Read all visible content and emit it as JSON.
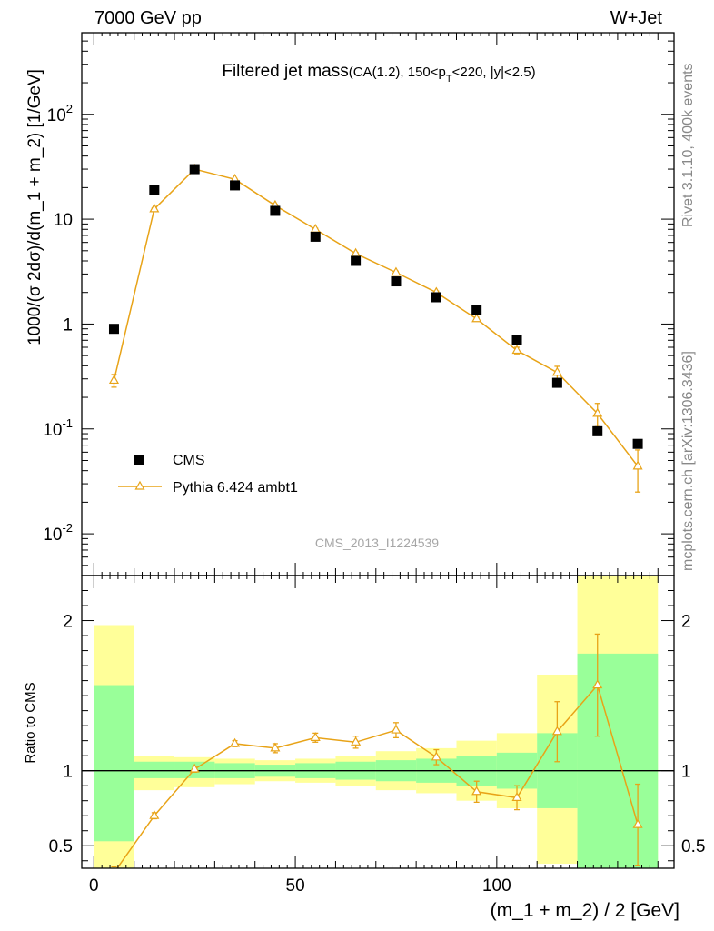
{
  "header": {
    "left": "7000 GeV pp",
    "right": "W+Jet"
  },
  "title": {
    "main": "Filtered jet mass",
    "sub_prefix": "(CA(1.2), 150<p",
    "sub_index": "T",
    "sub_suffix": "<220, |y|<2.5)"
  },
  "side_labels": {
    "rivet": "Rivet 3.1.10,  400k events",
    "mcplots": "mcplots.cern.ch [arXiv:1306.3436]"
  },
  "watermark": "CMS_2013_I1224539",
  "legend": {
    "data_label": "CMS",
    "mc_label": "Pythia 6.424 ambt1"
  },
  "colors": {
    "data": "#000000",
    "mc": "#e8a317",
    "band_inner": "#99ff99",
    "band_outer": "#ffff99"
  },
  "chart_data": {
    "type": "scatter",
    "x_label": "(m_1 + m_2) / 2 [GeV]",
    "main_panel": {
      "y_label": "1000/(σ 2dσ)/d(m_1 + m_2) [1/GeV]",
      "y_scale": "log",
      "y_range": [
        0.004,
        600
      ],
      "y_ticks": [
        {
          "value": 0.01,
          "base": "10",
          "exp": "-2"
        },
        {
          "value": 0.1,
          "base": "10",
          "exp": "-1"
        },
        {
          "value": 1,
          "base": "1",
          "exp": ""
        },
        {
          "value": 10,
          "base": "10",
          "exp": ""
        },
        {
          "value": 100,
          "base": "10",
          "exp": "2"
        }
      ],
      "series": [
        {
          "name": "CMS",
          "style": "square-markers",
          "x": [
            5,
            15,
            25,
            35,
            45,
            55,
            65,
            75,
            85,
            95,
            105,
            115,
            125,
            135
          ],
          "y": [
            0.9,
            19,
            30,
            21,
            12,
            6.8,
            4.0,
            2.55,
            1.8,
            1.35,
            0.71,
            0.275,
            0.095,
            0.072
          ]
        },
        {
          "name": "Pythia 6.424 ambt1",
          "style": "line-triangles",
          "x": [
            5,
            15,
            25,
            35,
            45,
            55,
            65,
            75,
            85,
            95,
            105,
            115,
            125,
            135
          ],
          "y": [
            0.29,
            12.5,
            30,
            24,
            13.5,
            8.0,
            4.7,
            3.1,
            2.0,
            1.12,
            0.56,
            0.345,
            0.14,
            0.044
          ],
          "y_err": [
            0.04,
            0.3,
            0.5,
            0.4,
            0.3,
            0.2,
            0.12,
            0.09,
            0.06,
            0.04,
            0.04,
            0.05,
            0.035,
            0.019
          ]
        }
      ]
    },
    "ratio_panel": {
      "y_label": "Ratio to CMS",
      "y_range": [
        0.35,
        2.3
      ],
      "y_ticks": [
        0.5,
        1,
        2
      ],
      "bins": [
        0,
        10,
        20,
        30,
        40,
        50,
        60,
        70,
        80,
        90,
        100,
        110,
        120,
        140
      ],
      "band_inner": [
        [
          0.53,
          1.57
        ],
        [
          0.95,
          1.06
        ],
        [
          0.95,
          1.06
        ],
        [
          0.95,
          1.05
        ],
        [
          0.96,
          1.04
        ],
        [
          0.95,
          1.05
        ],
        [
          0.94,
          1.06
        ],
        [
          0.93,
          1.07
        ],
        [
          0.92,
          1.08
        ],
        [
          0.9,
          1.1
        ],
        [
          0.88,
          1.12
        ],
        [
          0.75,
          1.25
        ],
        [
          0.3,
          1.78
        ]
      ],
      "band_outer": [
        [
          0.3,
          1.97
        ],
        [
          0.87,
          1.1
        ],
        [
          0.89,
          1.09
        ],
        [
          0.91,
          1.08
        ],
        [
          0.93,
          1.07
        ],
        [
          0.92,
          1.08
        ],
        [
          0.9,
          1.1
        ],
        [
          0.87,
          1.13
        ],
        [
          0.85,
          1.15
        ],
        [
          0.8,
          1.2
        ],
        [
          0.75,
          1.25
        ],
        [
          0.38,
          1.64
        ],
        [
          0.3,
          2.3
        ]
      ],
      "mc_ratio": {
        "x": [
          5,
          15,
          25,
          35,
          45,
          55,
          65,
          75,
          85,
          95,
          105,
          115,
          125,
          135
        ],
        "y": [
          0.32,
          0.7,
          1.01,
          1.18,
          1.15,
          1.22,
          1.19,
          1.27,
          1.09,
          0.86,
          0.82,
          1.26,
          1.57,
          0.64
        ],
        "y_err": [
          0.04,
          0.02,
          0.02,
          0.02,
          0.03,
          0.03,
          0.04,
          0.05,
          0.05,
          0.07,
          0.08,
          0.2,
          0.34,
          0.27
        ]
      }
    },
    "x_range": [
      -3,
      144
    ],
    "x_ticks": [
      0,
      50,
      100
    ]
  }
}
